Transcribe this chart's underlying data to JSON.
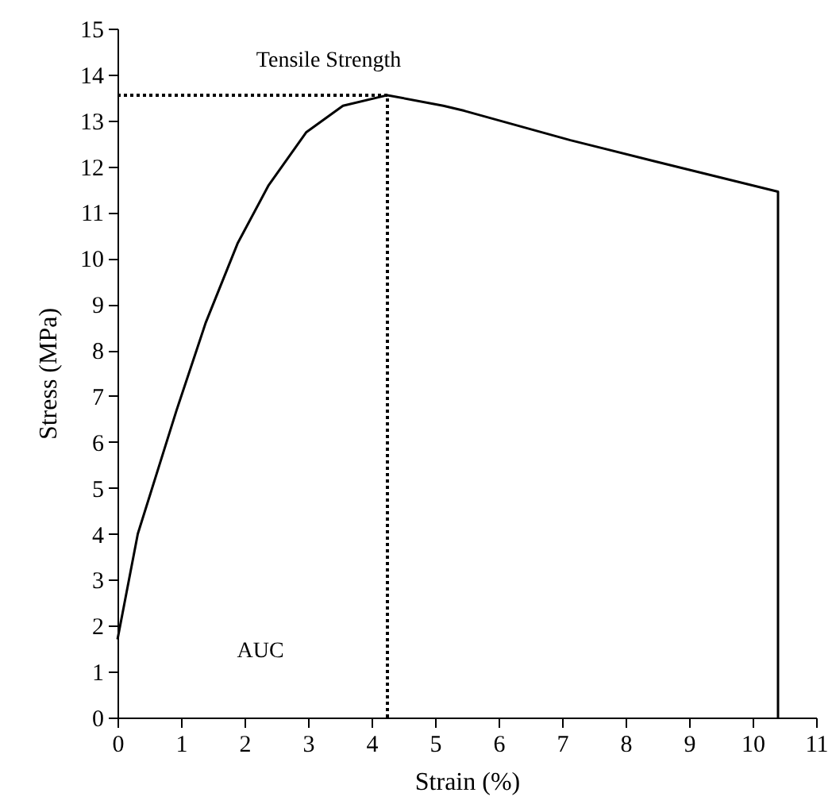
{
  "chart_data": {
    "type": "line",
    "xlabel": "Strain (%)",
    "ylabel": "Stress (MPa)",
    "xlim": [
      0,
      11
    ],
    "ylim": [
      0,
      15
    ],
    "xticks": [
      0,
      1,
      2,
      3,
      4,
      5,
      6,
      7,
      8,
      9,
      10,
      11
    ],
    "yticks": [
      0,
      1,
      2,
      3,
      4,
      5,
      6,
      7,
      8,
      9,
      10,
      11,
      12,
      13,
      14,
      15
    ],
    "annotations": [
      "Tensile Strength",
      "AUC"
    ],
    "series": [
      {
        "color": "#000000",
        "line_style": "solid",
        "x": [
          0,
          0.32,
          0.93,
          1.39,
          1.89,
          2.38,
          2.97,
          3.55,
          4.25,
          5.13,
          5.46,
          7.13,
          8.46,
          10.4,
          10.4
        ],
        "values": [
          1.7,
          4,
          6.69,
          8.6,
          10.32,
          11.59,
          12.74,
          13.32,
          13.55,
          13.32,
          13.21,
          12.57,
          12.11,
          11.45,
          0
        ]
      },
      {
        "color": "#000000",
        "line_style": "dotted",
        "x": [
          0,
          4.25
        ],
        "values": [
          13.55,
          13.55
        ]
      },
      {
        "color": "#000000",
        "line_style": "dotted",
        "x": [
          4.25,
          4.25
        ],
        "values": [
          0,
          13.55
        ]
      }
    ]
  }
}
